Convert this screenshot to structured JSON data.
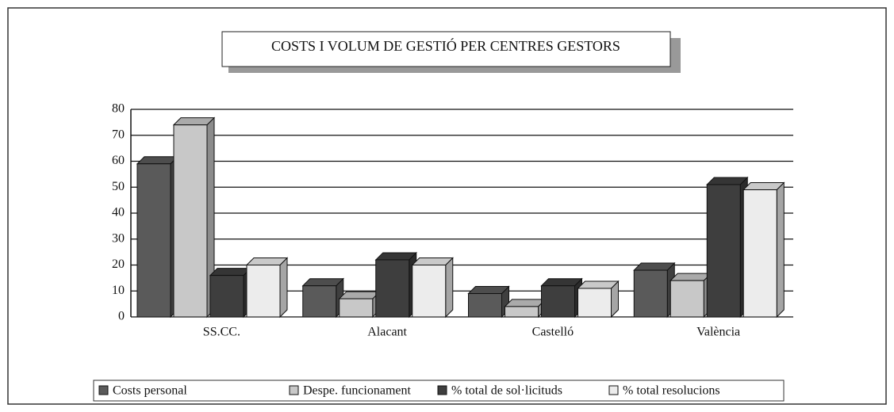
{
  "chart_data": {
    "type": "bar3d",
    "title": "COSTS I VOLUM DE GESTIÓ PER CENTRES GESTORS",
    "categories": [
      "SS.CC.",
      "Alacant",
      "Castelló",
      "València"
    ],
    "series": [
      {
        "name": "Costs personal",
        "color": "#5a5a5a",
        "values": [
          59,
          12,
          9,
          18
        ]
      },
      {
        "name": "Despe. funcionament",
        "color": "#c8c8c8",
        "values": [
          74,
          7,
          4,
          14
        ]
      },
      {
        "name": "% total de sol·licituds",
        "color": "#3e3e3e",
        "values": [
          16,
          22,
          12,
          51
        ]
      },
      {
        "name": "% total resolucions",
        "color": "#ececec",
        "values": [
          20,
          20,
          11,
          49
        ]
      }
    ],
    "ylim": [
      0,
      80
    ],
    "yticks": [
      0,
      10,
      20,
      30,
      40,
      50,
      60,
      70,
      80
    ],
    "grid": true
  }
}
